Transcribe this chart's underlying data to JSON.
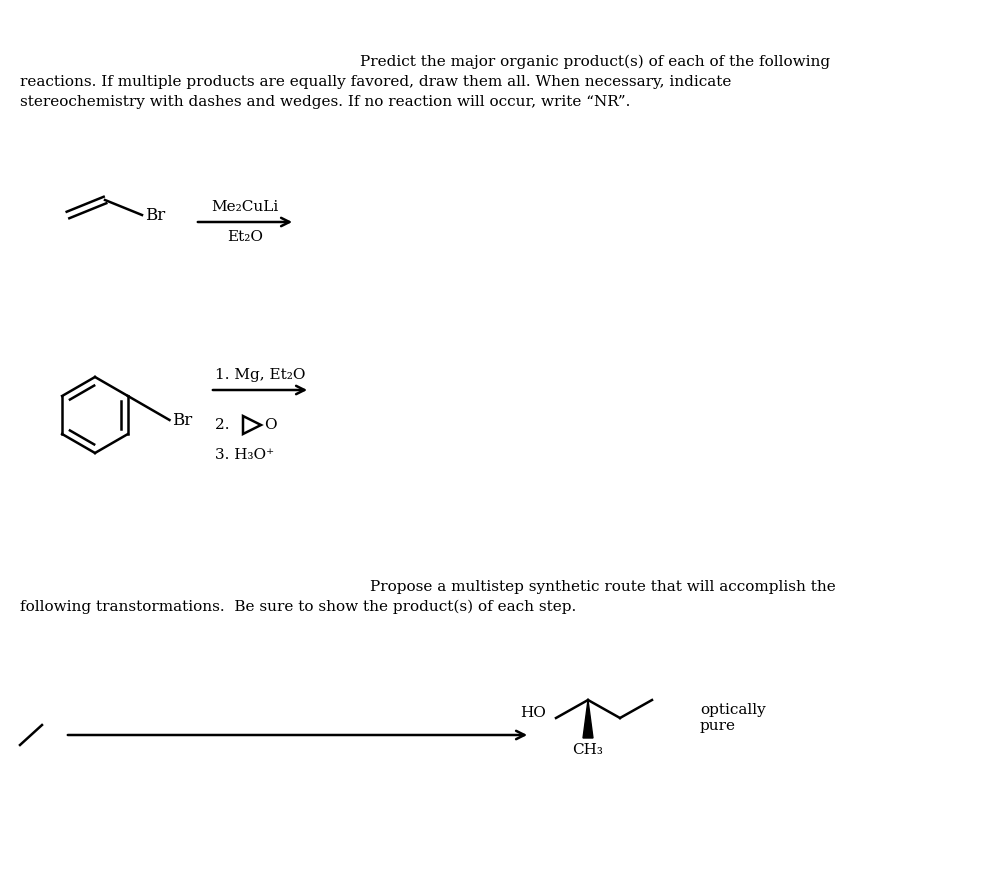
{
  "bg_color": "#ffffff",
  "text_color": "#000000",
  "rxn1_reagent1": "Me₂CuLi",
  "rxn1_reagent2": "Et₂O",
  "rxn2_reagent1": "1. Mg, Et₂O",
  "rxn2_reagent4": "3. H₃O⁺",
  "product_label": "optically\npure",
  "product_ho": "HO",
  "product_ch3": "CH₃"
}
